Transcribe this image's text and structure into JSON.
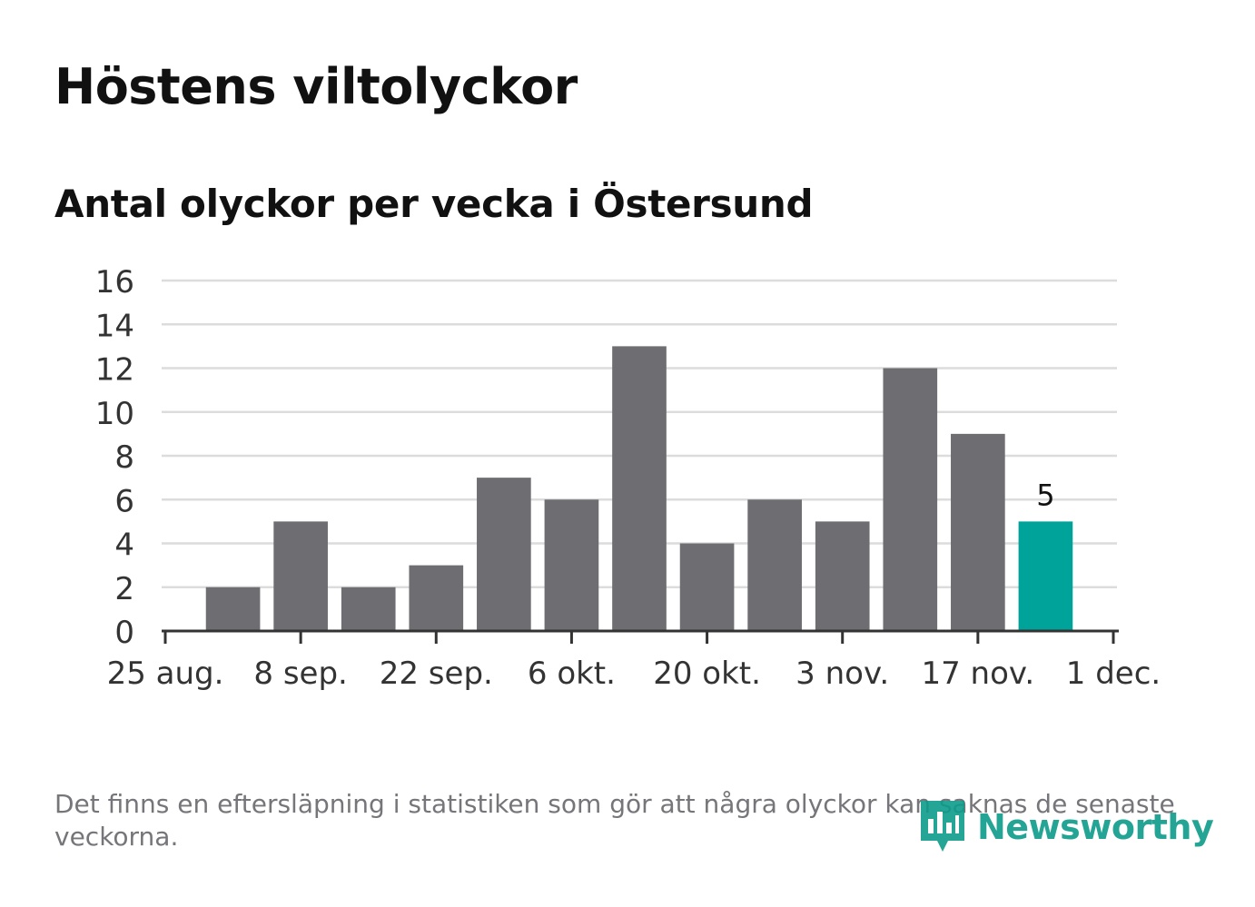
{
  "header": {
    "title": "Höstens viltolyckor",
    "subtitle": "Antal olyckor per vecka i Östersund"
  },
  "chart_data": {
    "type": "bar",
    "title": "Antal olyckor per vecka i Östersund",
    "xlabel": "",
    "ylabel": "",
    "ylim": [
      0,
      16
    ],
    "yticks": [
      "0",
      "2",
      "4",
      "6",
      "8",
      "10",
      "12",
      "14",
      "16"
    ],
    "xticks": [
      "25 aug.",
      "8 sep.",
      "22 sep.",
      "6 okt.",
      "20 okt.",
      "3 nov.",
      "17 nov.",
      "1 dec."
    ],
    "grid": true,
    "values": [
      2,
      5,
      2,
      3,
      7,
      6,
      13,
      4,
      6,
      5,
      12,
      9,
      5
    ],
    "highlight_index": 12,
    "highlight_label": "5",
    "bar_color": "#6e6d72",
    "highlight_color": "#00a39a"
  },
  "footer": {
    "note": "Det finns en eftersläpning i statistiken som gör att några olyckor kan saknas de senaste veckorna.",
    "brand": "Newsworthy",
    "brand_color": "#0c9b8a"
  }
}
